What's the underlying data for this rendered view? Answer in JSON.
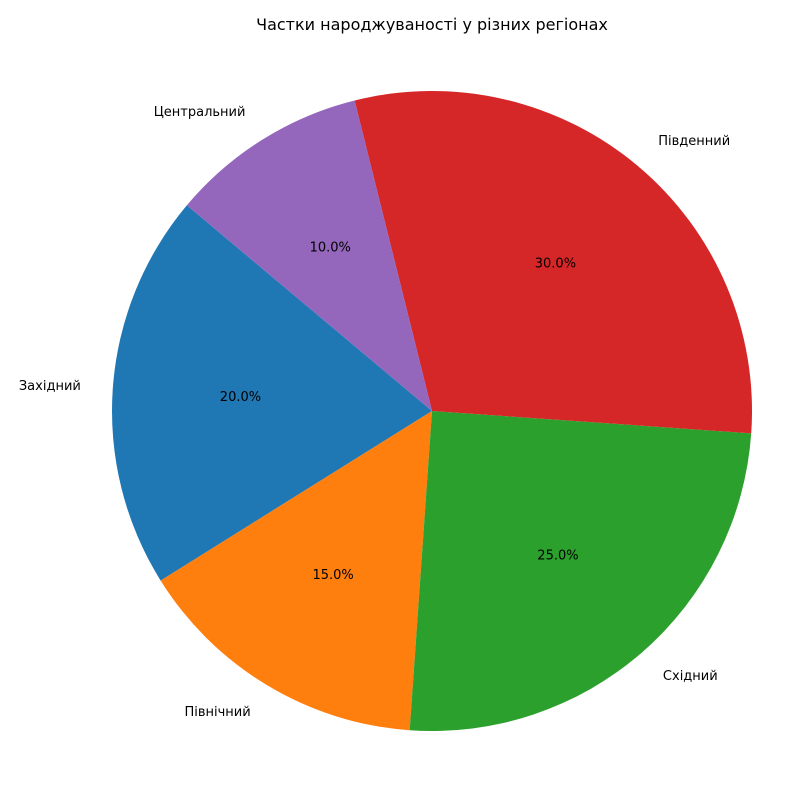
{
  "chart_data": {
    "type": "pie",
    "title": "Частки народжуваності у різних регіонах",
    "categories": [
      "Західний",
      "Північний",
      "Східний",
      "Південний",
      "Центральний"
    ],
    "values": [
      20.0,
      15.0,
      25.0,
      30.0,
      10.0
    ],
    "percent_labels": [
      "20.0%",
      "15.0%",
      "25.0%",
      "30.0%",
      "10.0%"
    ],
    "colors": [
      "#1f77b4",
      "#ff7f0e",
      "#2ca02c",
      "#d62728",
      "#9467bd"
    ],
    "start_angle_deg": 140,
    "direction": "counterclockwise",
    "legend": "none"
  }
}
